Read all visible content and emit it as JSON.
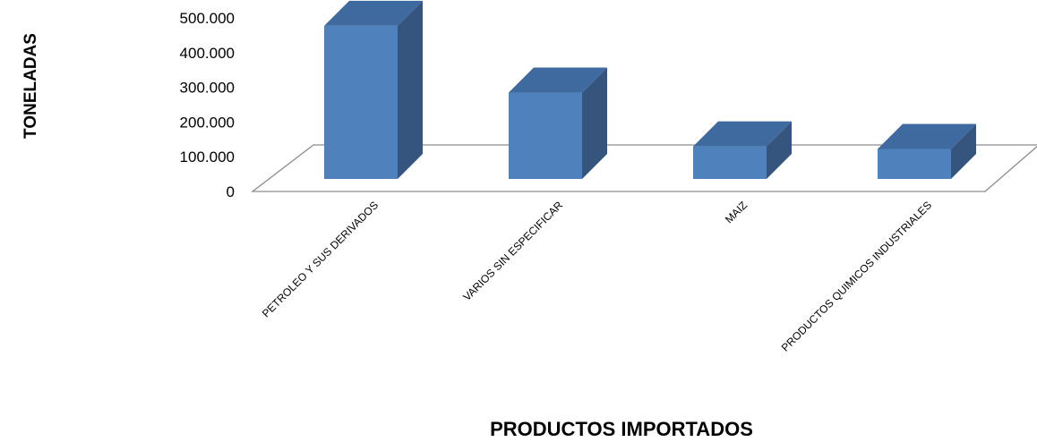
{
  "chart_data": {
    "type": "bar",
    "categories": [
      "PETROLEO Y SUS DERIVADOS",
      "VARIOS SIN ESPECIFICAR",
      "MAIZ",
      "PRODUCTOS QUIMICOS INDUSTRIALES"
    ],
    "values": [
      470000,
      265000,
      100000,
      92000
    ],
    "xlabel": "PRODUCTOS IMPORTADOS",
    "ylabel": "TONELADAS",
    "ylim": [
      0,
      500000
    ],
    "yticks": [
      "0",
      "100.000",
      "200.000",
      "300.000",
      "400.000",
      "500.000"
    ],
    "grid": false,
    "legend": "none",
    "style": "3d-column",
    "colors": {
      "front": "#4f81bd",
      "top": "#3f6aa0",
      "side": "#35557f",
      "floor_line": "#8c8c8c"
    }
  }
}
